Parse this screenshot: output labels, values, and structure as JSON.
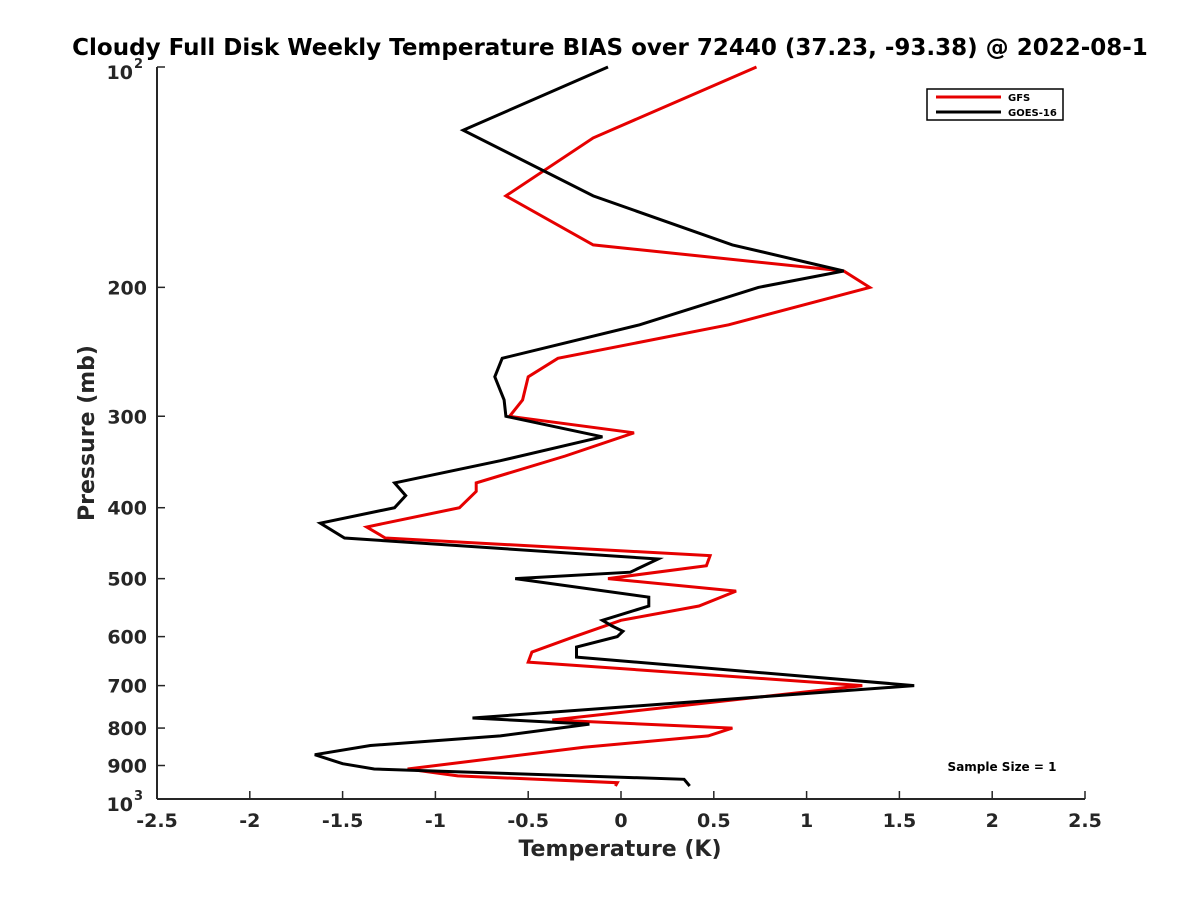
{
  "chart_data": {
    "type": "line",
    "title": "Cloudy Full Disk Weekly Temperature BIAS over 72440 (37.23, -93.38) @ 2022-08-1",
    "xlabel": "Temperature (K)",
    "ylabel": "Pressure (mb)",
    "xlim": [
      -2.5,
      2.5
    ],
    "ylim": [
      100,
      1000
    ],
    "y_scale": "log",
    "y_reversed": true,
    "x_ticks": [
      {
        "value": -2.5,
        "label": "-2.5"
      },
      {
        "value": -2,
        "label": "-2"
      },
      {
        "value": -1.5,
        "label": "-1.5"
      },
      {
        "value": -1,
        "label": "-1"
      },
      {
        "value": -0.5,
        "label": "-0.5"
      },
      {
        "value": 0,
        "label": "0"
      },
      {
        "value": 0.5,
        "label": "0.5"
      },
      {
        "value": 1,
        "label": "1"
      },
      {
        "value": 1.5,
        "label": "1.5"
      },
      {
        "value": 2,
        "label": "2"
      },
      {
        "value": 2.5,
        "label": "2.5"
      }
    ],
    "y_ticks": [
      {
        "value": 100,
        "label": "10",
        "sup": "2"
      },
      {
        "value": 200,
        "label": "200"
      },
      {
        "value": 300,
        "label": "300"
      },
      {
        "value": 400,
        "label": "400"
      },
      {
        "value": 500,
        "label": "500"
      },
      {
        "value": 600,
        "label": "600"
      },
      {
        "value": 700,
        "label": "700"
      },
      {
        "value": 800,
        "label": "800"
      },
      {
        "value": 900,
        "label": "900"
      },
      {
        "value": 1000,
        "label": "10",
        "sup": "3"
      }
    ],
    "grid": false,
    "legend_position": "top-right",
    "annotation": "Sample Size = 1",
    "series": [
      {
        "name": "GFS",
        "color": "#e60000",
        "points": [
          [
            0.73,
            100
          ],
          [
            -0.15,
            125
          ],
          [
            -0.62,
            150
          ],
          [
            -0.15,
            175
          ],
          [
            1.2,
            190
          ],
          [
            1.34,
            200
          ],
          [
            0.58,
            225
          ],
          [
            -0.34,
            250
          ],
          [
            -0.5,
            265
          ],
          [
            -0.53,
            285
          ],
          [
            -0.6,
            300
          ],
          [
            0.07,
            316
          ],
          [
            -0.3,
            340
          ],
          [
            -0.78,
            370
          ],
          [
            -0.78,
            380
          ],
          [
            -0.87,
            400
          ],
          [
            -1.37,
            425
          ],
          [
            -1.27,
            440
          ],
          [
            0.48,
            465
          ],
          [
            0.46,
            480
          ],
          [
            -0.07,
            500
          ],
          [
            0.62,
            520
          ],
          [
            0.42,
            545
          ],
          [
            0.0,
            570
          ],
          [
            -0.25,
            600
          ],
          [
            -0.48,
            630
          ],
          [
            -0.5,
            650
          ],
          [
            1.3,
            700
          ],
          [
            -0.37,
            780
          ],
          [
            0.6,
            800
          ],
          [
            0.47,
            820
          ],
          [
            -0.2,
            850
          ],
          [
            -1.15,
            910
          ],
          [
            -0.88,
            930
          ],
          [
            -0.02,
            950
          ],
          [
            -0.03,
            960
          ]
        ]
      },
      {
        "name": "GOES-16",
        "color": "#000000",
        "points": [
          [
            -0.07,
            100
          ],
          [
            -0.85,
            122
          ],
          [
            -0.15,
            150
          ],
          [
            0.6,
            175
          ],
          [
            1.2,
            190
          ],
          [
            0.74,
            200
          ],
          [
            0.1,
            225
          ],
          [
            -0.64,
            250
          ],
          [
            -0.68,
            265
          ],
          [
            -0.63,
            285
          ],
          [
            -0.62,
            300
          ],
          [
            -0.1,
            320
          ],
          [
            -0.65,
            345
          ],
          [
            -1.22,
            370
          ],
          [
            -1.16,
            385
          ],
          [
            -1.22,
            400
          ],
          [
            -1.62,
            420
          ],
          [
            -1.49,
            440
          ],
          [
            0.2,
            470
          ],
          [
            0.05,
            490
          ],
          [
            -0.57,
            500
          ],
          [
            0.15,
            530
          ],
          [
            0.15,
            545
          ],
          [
            -0.1,
            570
          ],
          [
            -0.05,
            580
          ],
          [
            0.01,
            590
          ],
          [
            -0.02,
            600
          ],
          [
            -0.24,
            620
          ],
          [
            -0.24,
            640
          ],
          [
            1.58,
            700
          ],
          [
            -0.8,
            775
          ],
          [
            -0.17,
            790
          ],
          [
            -0.65,
            820
          ],
          [
            -1.35,
            845
          ],
          [
            -1.65,
            870
          ],
          [
            -1.5,
            895
          ],
          [
            -1.33,
            910
          ],
          [
            0.34,
            940
          ],
          [
            0.37,
            960
          ]
        ]
      }
    ]
  }
}
